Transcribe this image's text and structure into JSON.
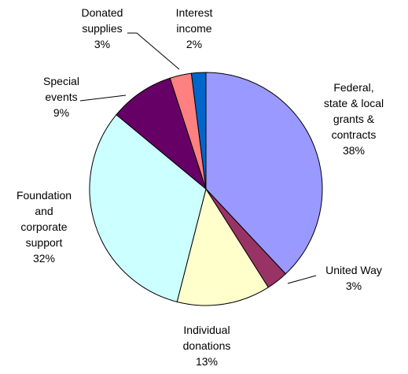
{
  "chart_data": {
    "type": "pie",
    "title": "",
    "slices": [
      {
        "label_lines": [
          "Federal,",
          "state & local",
          "grants &",
          "contracts"
        ],
        "value_label": "38%",
        "value": 38,
        "color": "#9999ff"
      },
      {
        "label_lines": [
          "United Way"
        ],
        "value_label": "3%",
        "value": 3,
        "color": "#993366"
      },
      {
        "label_lines": [
          "Individual",
          "donations"
        ],
        "value_label": "13%",
        "value": 13,
        "color": "#ffffcc"
      },
      {
        "label_lines": [
          "Foundation",
          "and",
          "corporate",
          "support"
        ],
        "value_label": "32%",
        "value": 32,
        "color": "#ccffff"
      },
      {
        "label_lines": [
          "Special",
          "events"
        ],
        "value_label": "9%",
        "value": 9,
        "color": "#660066"
      },
      {
        "label_lines": [
          "Donated",
          "supplies"
        ],
        "value_label": "3%",
        "value": 3,
        "color": "#ff8080"
      },
      {
        "label_lines": [
          "Interest",
          "income"
        ],
        "value_label": "2%",
        "value": 2,
        "color": "#0066cc"
      }
    ]
  }
}
